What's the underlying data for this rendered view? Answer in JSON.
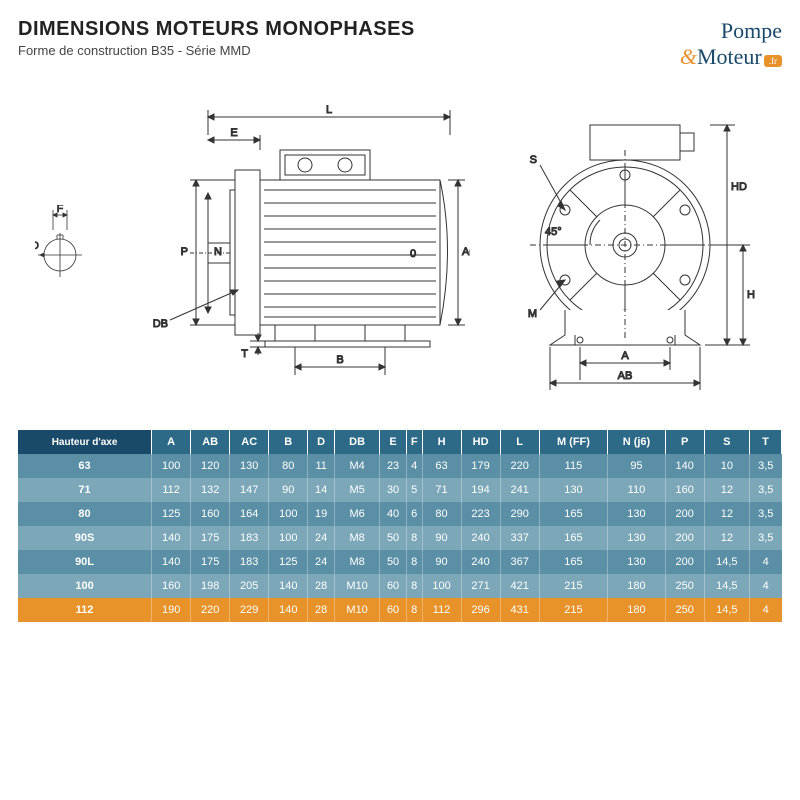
{
  "header": {
    "title": "DIMENSIONS MOTEURS MONOPHASES",
    "subtitle": "Forme de construction B35 - Série MMD"
  },
  "logo": {
    "line1": "Pompe",
    "amp": "&",
    "line2": "Moteur",
    "badge": ".fr"
  },
  "diagram_labels": {
    "side": {
      "L": "L",
      "E": "E",
      "F": "F",
      "D": "D",
      "P": "P",
      "N": "N",
      "DB": "DB",
      "T": "T",
      "B": "B",
      "O": "0",
      "AC": "AC"
    },
    "front": {
      "S": "S",
      "angle": "45°",
      "M": "M",
      "HD": "HD",
      "H": "H",
      "A": "A",
      "AB": "AB"
    }
  },
  "table": {
    "row_header_label": "Hauteur d'axe",
    "columns": [
      "A",
      "AB",
      "AC",
      "B",
      "D",
      "DB",
      "E",
      "F",
      "H",
      "HD",
      "L",
      "M (FF)",
      "N (j6)",
      "P",
      "S",
      "T"
    ],
    "rows": [
      {
        "key": "63",
        "vals": [
          "100",
          "120",
          "130",
          "80",
          "11",
          "M4",
          "23",
          "4",
          "63",
          "179",
          "220",
          "115",
          "95",
          "140",
          "10",
          "3,5"
        ],
        "highlight": false
      },
      {
        "key": "71",
        "vals": [
          "112",
          "132",
          "147",
          "90",
          "14",
          "M5",
          "30",
          "5",
          "71",
          "194",
          "241",
          "130",
          "110",
          "160",
          "12",
          "3,5"
        ],
        "highlight": false
      },
      {
        "key": "80",
        "vals": [
          "125",
          "160",
          "164",
          "100",
          "19",
          "M6",
          "40",
          "6",
          "80",
          "223",
          "290",
          "165",
          "130",
          "200",
          "12",
          "3,5"
        ],
        "highlight": false
      },
      {
        "key": "90S",
        "vals": [
          "140",
          "175",
          "183",
          "100",
          "24",
          "M8",
          "50",
          "8",
          "90",
          "240",
          "337",
          "165",
          "130",
          "200",
          "12",
          "3,5"
        ],
        "highlight": false
      },
      {
        "key": "90L",
        "vals": [
          "140",
          "175",
          "183",
          "125",
          "24",
          "M8",
          "50",
          "8",
          "90",
          "240",
          "367",
          "165",
          "130",
          "200",
          "14,5",
          "4"
        ],
        "highlight": false
      },
      {
        "key": "100",
        "vals": [
          "160",
          "198",
          "205",
          "140",
          "28",
          "M10",
          "60",
          "8",
          "100",
          "271",
          "421",
          "215",
          "180",
          "250",
          "14,5",
          "4"
        ],
        "highlight": false
      },
      {
        "key": "112",
        "vals": [
          "190",
          "220",
          "229",
          "140",
          "28",
          "M10",
          "60",
          "8",
          "112",
          "296",
          "431",
          "215",
          "180",
          "250",
          "14,5",
          "4"
        ],
        "highlight": true
      }
    ]
  },
  "colors": {
    "header_bg": "#2d6a87",
    "row_header_bg": "#1a4a6a",
    "row_even": "#5b8fa5",
    "row_odd": "#7ba7b8",
    "highlight": "#e8922a"
  }
}
